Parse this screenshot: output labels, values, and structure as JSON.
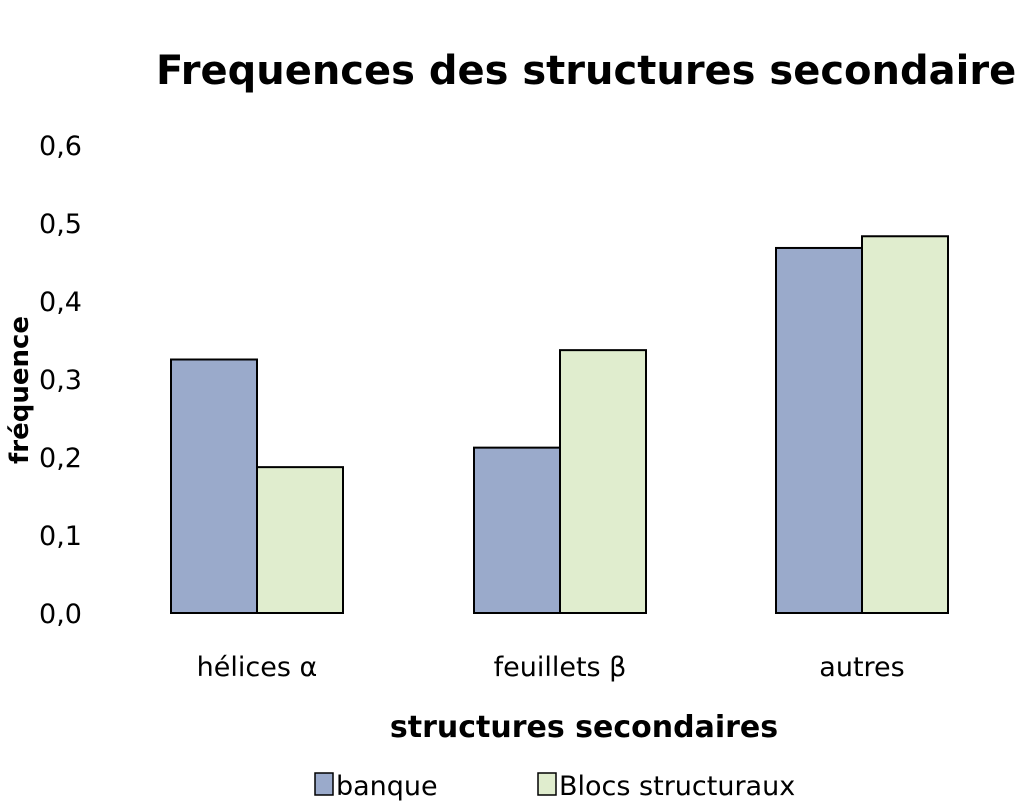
{
  "chart_data": {
    "type": "bar",
    "title": "Frequences des structures secondaires",
    "xlabel": "structures secondaires",
    "ylabel": "fréquence",
    "categories": [
      "hélices α",
      "feuillets β",
      "autres"
    ],
    "series": [
      {
        "name": "banque",
        "values": [
          0.325,
          0.212,
          0.468
        ],
        "color": "#9aaacb"
      },
      {
        "name": "Blocs structuraux",
        "values": [
          0.187,
          0.337,
          0.483
        ],
        "color": "#e0edce"
      }
    ],
    "yticks": [
      "0,0",
      "0,1",
      "0,2",
      "0,3",
      "0,4",
      "0,5",
      "0,6"
    ],
    "ylim": [
      0,
      0.6
    ],
    "grid": false,
    "legend_position": "bottom"
  }
}
